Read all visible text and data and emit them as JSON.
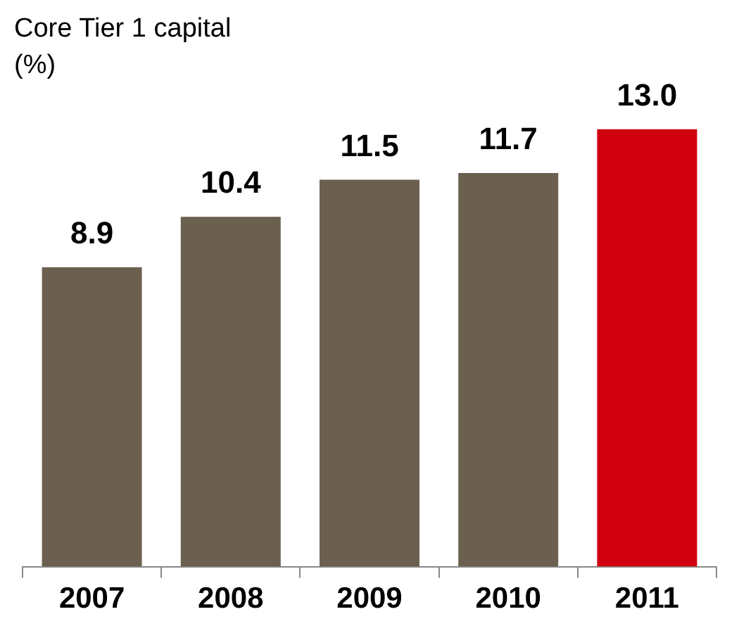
{
  "chart_data": {
    "type": "bar",
    "title": "Core Tier 1 capital (%)",
    "categories": [
      "2007",
      "2008",
      "2009",
      "2010",
      "2011"
    ],
    "values": [
      8.9,
      10.4,
      11.5,
      11.7,
      13.0
    ],
    "value_labels": [
      "8.9",
      "10.4",
      "11.5",
      "11.7",
      "13.0"
    ],
    "colors": [
      "#6b604f",
      "#6b604f",
      "#6b604f",
      "#6b604f",
      "#d0000e"
    ],
    "legend": false
  }
}
